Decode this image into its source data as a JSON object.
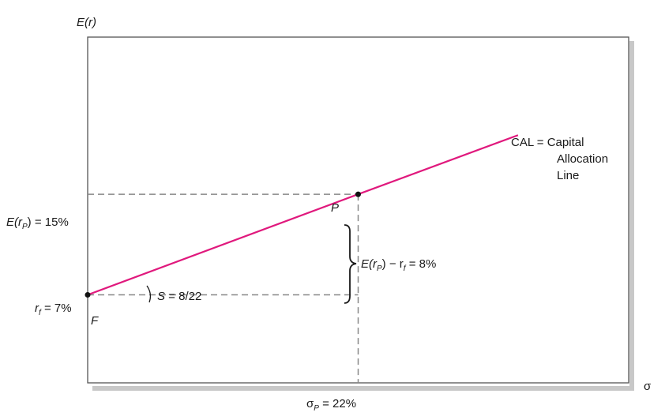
{
  "chart_data": {
    "type": "line",
    "title": "",
    "xlabel": "σ",
    "ylabel": "E(r)",
    "xlim": [
      0,
      44
    ],
    "ylim": [
      0,
      27.5
    ],
    "grid": false,
    "series": [
      {
        "name": "CAL = Capital Allocation Line",
        "color": "#e0197d",
        "x": [
          0,
          22,
          35
        ],
        "y": [
          7,
          15,
          19.7
        ]
      }
    ],
    "points": [
      {
        "label": "F",
        "x": 0,
        "y": 7
      },
      {
        "label": "P",
        "x": 22,
        "y": 15
      }
    ],
    "rf": 7,
    "sigma_p": 22,
    "e_rp": 15,
    "cal_label": [
      "CAL = Capital",
      "Allocation",
      "Line"
    ],
    "annotations": {
      "rf": {
        "main": "r",
        "sub": "f",
        "rest": " = 7%"
      },
      "erp": {
        "pre": "E(r",
        "sub": "P",
        "post": ") = 15%"
      },
      "sigma": {
        "pre": "σ",
        "sub": "P",
        "post": " = 22%"
      },
      "premium": {
        "pre": "E(r",
        "sub1": "P",
        "mid": ") − r",
        "sub2": "f",
        "post": " = 8%"
      },
      "slope": "S = 8/22",
      "point_p": "P",
      "point_f": "F"
    }
  }
}
